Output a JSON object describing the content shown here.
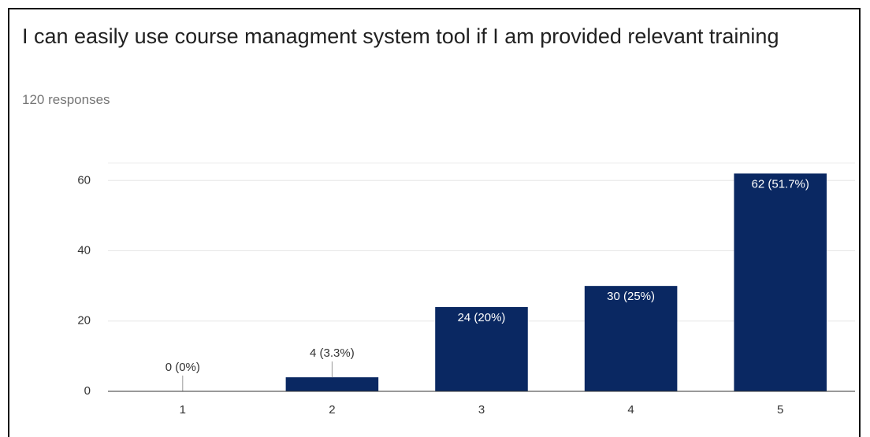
{
  "chart_data": {
    "type": "bar",
    "title": "I can easily use course managment system tool if I am provided relevant training",
    "subtitle": "120 responses",
    "categories": [
      "1",
      "2",
      "3",
      "4",
      "5"
    ],
    "values": [
      0,
      4,
      24,
      30,
      62
    ],
    "value_labels": [
      "0 (0%)",
      "4 (3.3%)",
      "24 (20%)",
      "30 (25%)",
      "62 (51.7%)"
    ],
    "color": "#0a2862",
    "ylim": [
      0,
      65
    ],
    "yticks": [
      0,
      20,
      40,
      60
    ],
    "grid": true
  }
}
